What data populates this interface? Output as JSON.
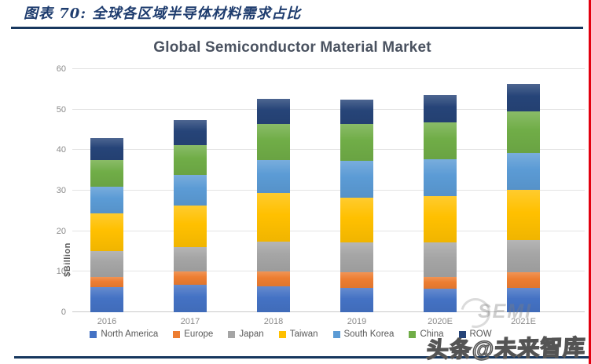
{
  "page": {
    "figure_title": "图表 70:  全球各区域半导体材料需求占比",
    "watermark_semi": "SEMI",
    "watermark_toutiao": "头条@未来智库"
  },
  "chart_data": {
    "type": "bar",
    "stacked": true,
    "title": "Global Semiconductor Material Market",
    "xlabel": "",
    "ylabel": "$Billion",
    "ylim": [
      0,
      60
    ],
    "yticks": [
      0,
      10,
      20,
      30,
      40,
      50,
      60
    ],
    "grid": true,
    "legend_position": "bottom",
    "categories": [
      "2016",
      "2017",
      "2018",
      "2019",
      "2020E",
      "2021E"
    ],
    "series": [
      {
        "name": "North America",
        "color": "#4472C4",
        "values": [
          6.2,
          6.8,
          6.3,
          6.0,
          5.8,
          6.0
        ]
      },
      {
        "name": "Europe",
        "color": "#ED7D31",
        "values": [
          2.6,
          3.3,
          3.7,
          3.8,
          2.9,
          3.8
        ]
      },
      {
        "name": "Japan",
        "color": "#A5A5A5",
        "values": [
          6.3,
          6.0,
          7.4,
          7.5,
          8.6,
          8.0
        ]
      },
      {
        "name": "Taiwan",
        "color": "#FFC000",
        "values": [
          9.3,
          10.2,
          12.0,
          10.9,
          11.4,
          12.4
        ]
      },
      {
        "name": "South Korea",
        "color": "#5B9BD5",
        "values": [
          6.6,
          7.6,
          8.2,
          9.2,
          9.0,
          9.0
        ]
      },
      {
        "name": "China",
        "color": "#70AD47",
        "values": [
          6.5,
          7.3,
          8.8,
          9.1,
          9.2,
          10.4
        ]
      },
      {
        "name": "ROW",
        "color": "#264478",
        "values": [
          5.5,
          6.2,
          6.3,
          6.0,
          6.7,
          6.8
        ]
      }
    ],
    "totals": [
      43.0,
      47.4,
      52.7,
      52.5,
      53.6,
      56.4
    ]
  },
  "colors": {
    "accent_rule": "#17375E",
    "red_edge": "#E2000F",
    "figure_title_text": "#1E3C6E",
    "chart_title_text": "#4A5260",
    "axis_text": "#8A8A8A",
    "legend_text": "#595959"
  }
}
